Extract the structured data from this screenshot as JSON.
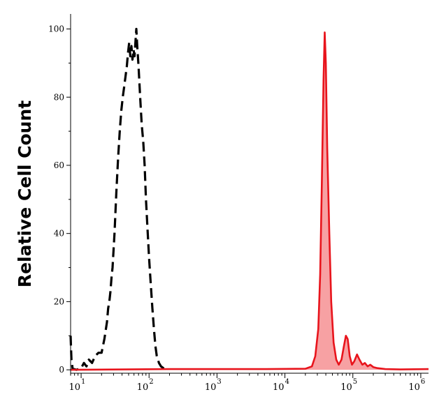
{
  "chart_data": {
    "type": "area",
    "title": "",
    "xlabel": "",
    "ylabel": "Relative Cell Count",
    "x_scale": "log",
    "xlim": [
      7,
      1300000
    ],
    "ylim": [
      -1,
      104
    ],
    "grid": false,
    "legend": "none",
    "y_ticks": [
      {
        "value": 0,
        "label": "0"
      },
      {
        "value": 20,
        "label": "20"
      },
      {
        "value": 40,
        "label": "40"
      },
      {
        "value": 60,
        "label": "60"
      },
      {
        "value": 80,
        "label": "80"
      },
      {
        "value": 100,
        "label": "100"
      }
    ],
    "x_ticks": [
      {
        "value": 10,
        "base": "10",
        "exp": "1"
      },
      {
        "value": 100,
        "base": "10",
        "exp": "2"
      },
      {
        "value": 1000,
        "base": "10",
        "exp": "3"
      },
      {
        "value": 10000,
        "base": "10",
        "exp": "4"
      },
      {
        "value": 100000,
        "base": "10",
        "exp": "5"
      },
      {
        "value": 1000000,
        "base": "10",
        "exp": "6"
      }
    ],
    "series": [
      {
        "style": "dashed",
        "color": "#000000",
        "fill": "none",
        "points": [
          [
            7.0,
            10
          ],
          [
            7.2,
            3
          ],
          [
            7.5,
            0.3
          ],
          [
            8.5,
            0
          ],
          [
            10,
            0.5
          ],
          [
            11,
            2
          ],
          [
            12,
            1
          ],
          [
            13,
            3
          ],
          [
            14.5,
            2
          ],
          [
            16,
            4
          ],
          [
            18,
            5
          ],
          [
            20,
            5
          ],
          [
            22,
            9
          ],
          [
            24,
            14
          ],
          [
            25,
            18
          ],
          [
            26,
            20
          ],
          [
            27,
            23
          ],
          [
            28,
            27
          ],
          [
            29,
            30
          ],
          [
            31,
            40
          ],
          [
            33,
            52
          ],
          [
            35,
            62
          ],
          [
            37,
            70
          ],
          [
            39,
            76
          ],
          [
            41,
            80
          ],
          [
            43,
            83
          ],
          [
            45,
            86
          ],
          [
            47,
            89
          ],
          [
            49,
            93
          ],
          [
            51,
            96
          ],
          [
            53,
            92
          ],
          [
            55,
            95
          ],
          [
            57,
            91
          ],
          [
            59,
            94
          ],
          [
            61,
            92
          ],
          [
            63,
            96
          ],
          [
            65,
            100
          ],
          [
            67,
            95
          ],
          [
            70,
            89
          ],
          [
            74,
            80
          ],
          [
            78,
            72
          ],
          [
            82,
            67
          ],
          [
            86,
            60
          ],
          [
            90,
            50
          ],
          [
            95,
            41
          ],
          [
            100,
            33
          ],
          [
            106,
            25
          ],
          [
            112,
            18
          ],
          [
            118,
            12
          ],
          [
            124,
            7
          ],
          [
            130,
            4
          ],
          [
            140,
            2
          ],
          [
            150,
            1
          ],
          [
            165,
            0.4
          ],
          [
            180,
            0
          ]
        ]
      },
      {
        "style": "solid",
        "color": "#e8141c",
        "fill": "#f7a1a3",
        "points": [
          [
            7,
            0
          ],
          [
            200,
            0.2
          ],
          [
            1000,
            0.2
          ],
          [
            5000,
            0.2
          ],
          [
            20000,
            0.3
          ],
          [
            25000,
            1
          ],
          [
            28000,
            4
          ],
          [
            31000,
            12
          ],
          [
            33000,
            28
          ],
          [
            35000,
            55
          ],
          [
            37000,
            85
          ],
          [
            38500,
            99
          ],
          [
            40000,
            90
          ],
          [
            42000,
            65
          ],
          [
            45000,
            40
          ],
          [
            48000,
            20
          ],
          [
            52000,
            8
          ],
          [
            57000,
            3
          ],
          [
            62000,
            1.5
          ],
          [
            68000,
            3
          ],
          [
            74000,
            7
          ],
          [
            79000,
            10
          ],
          [
            84000,
            9
          ],
          [
            90000,
            4
          ],
          [
            97000,
            1.5
          ],
          [
            105000,
            2.5
          ],
          [
            115000,
            4.5
          ],
          [
            125000,
            3
          ],
          [
            138000,
            1.5
          ],
          [
            150000,
            2
          ],
          [
            165000,
            1
          ],
          [
            180000,
            1.5
          ],
          [
            200000,
            0.8
          ],
          [
            230000,
            0.5
          ],
          [
            300000,
            0.2
          ],
          [
            500000,
            0.1
          ],
          [
            1300000,
            0.2
          ]
        ]
      }
    ]
  }
}
